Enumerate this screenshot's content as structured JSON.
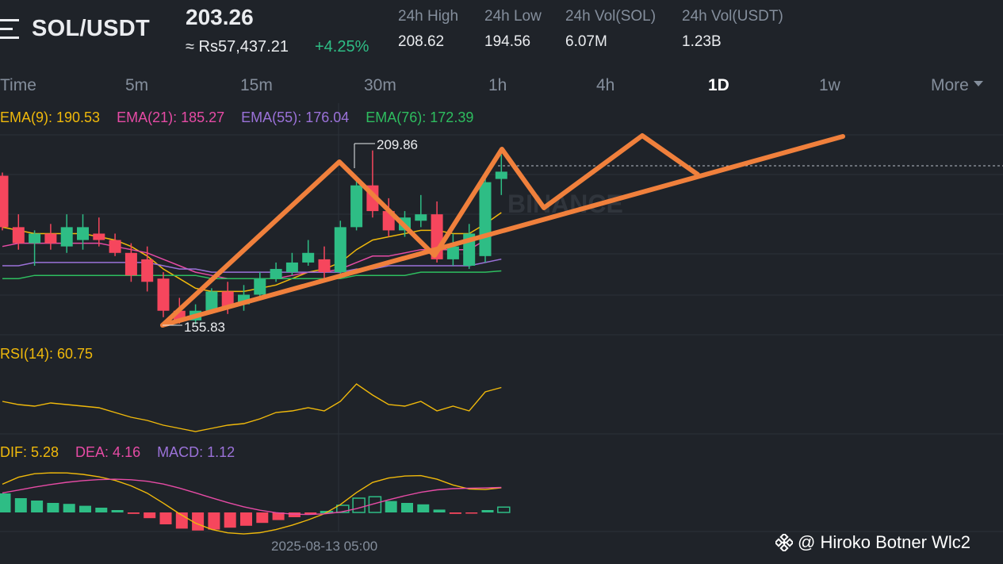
{
  "header": {
    "pair": "SOL/USDT",
    "price": "203.26",
    "fiat_price": "≈ Rs57,437.21",
    "change": "+4.25%",
    "stats": [
      {
        "label": "24h High",
        "value": "208.62"
      },
      {
        "label": "24h Low",
        "value": "194.56"
      },
      {
        "label": "24h Vol(SOL)",
        "value": "6.07M"
      },
      {
        "label": "24h Vol(USDT)",
        "value": "1.23B"
      }
    ]
  },
  "tabs": [
    {
      "label": "Time"
    },
    {
      "label": "5m"
    },
    {
      "label": "15m"
    },
    {
      "label": "30m"
    },
    {
      "label": "1h"
    },
    {
      "label": "4h"
    },
    {
      "label": "1D",
      "active": true
    },
    {
      "label": "1w"
    },
    {
      "label": "More"
    }
  ],
  "ema": [
    {
      "label": "EMA(9): 190.53",
      "color": "#f0b90b"
    },
    {
      "label": "EMA(21): 185.27",
      "color": "#e64ba5"
    },
    {
      "label": "EMA(55): 176.04",
      "color": "#9b72d9"
    },
    {
      "label": "EMA(76): 172.39",
      "color": "#2ebd5f"
    }
  ],
  "rsi": {
    "label": "RSI(14): 60.75",
    "color": "#f0b90b"
  },
  "macd": [
    {
      "label": "DIF: 5.28",
      "color": "#f0b90b"
    },
    {
      "label": "DEA: 4.16",
      "color": "#e64ba5"
    },
    {
      "label": "MACD: 1.12",
      "color": "#9b72d9"
    }
  ],
  "chart_marks": {
    "high_label": "209.86",
    "low_label": "155.83",
    "watermark_center": "BINANCE",
    "time_axis_label": "2025-08-13 05:00"
  },
  "colors": {
    "up": "#2ebd85",
    "down": "#f6465d",
    "drawing": "#f0803c",
    "background": "#1f2329"
  },
  "chart_data": {
    "type": "candlestick",
    "title": "SOL/USDT",
    "interval": "1D",
    "ylim": [
      155,
      212
    ],
    "candles": [
      {
        "o": 202,
        "h": 203,
        "c": 186,
        "l": 185
      },
      {
        "o": 186,
        "h": 190,
        "c": 181,
        "l": 179
      },
      {
        "o": 181,
        "h": 185,
        "c": 184,
        "l": 174
      },
      {
        "o": 184,
        "h": 187,
        "c": 181,
        "l": 179
      },
      {
        "o": 180,
        "h": 190,
        "c": 186,
        "l": 178
      },
      {
        "o": 182,
        "h": 190,
        "c": 186,
        "l": 179
      },
      {
        "o": 184,
        "h": 189,
        "c": 182,
        "l": 180
      },
      {
        "o": 182,
        "h": 184,
        "c": 178,
        "l": 177
      },
      {
        "o": 178,
        "h": 181,
        "c": 171,
        "l": 169
      },
      {
        "o": 176,
        "h": 180,
        "c": 169,
        "l": 166
      },
      {
        "o": 170,
        "h": 172,
        "c": 160,
        "l": 158
      },
      {
        "o": 160,
        "h": 164,
        "c": 157,
        "l": 156
      },
      {
        "o": 157,
        "h": 162,
        "c": 160,
        "l": 155.83
      },
      {
        "o": 160,
        "h": 167,
        "c": 166,
        "l": 159
      },
      {
        "o": 166,
        "h": 169,
        "c": 161,
        "l": 159
      },
      {
        "o": 162,
        "h": 168,
        "c": 165,
        "l": 160
      },
      {
        "o": 165,
        "h": 172,
        "c": 170,
        "l": 164
      },
      {
        "o": 170,
        "h": 175,
        "c": 173,
        "l": 169
      },
      {
        "o": 172,
        "h": 178,
        "c": 175,
        "l": 171
      },
      {
        "o": 175,
        "h": 182,
        "c": 178,
        "l": 174
      },
      {
        "o": 176,
        "h": 180,
        "c": 172,
        "l": 170
      },
      {
        "o": 172,
        "h": 188,
        "c": 186,
        "l": 171
      },
      {
        "o": 186,
        "h": 202,
        "c": 199,
        "l": 185
      },
      {
        "o": 199,
        "h": 209.86,
        "c": 191,
        "l": 189
      },
      {
        "o": 191,
        "h": 195,
        "c": 185,
        "l": 183
      },
      {
        "o": 185,
        "h": 191,
        "c": 189,
        "l": 183
      },
      {
        "o": 188,
        "h": 196,
        "c": 190,
        "l": 186
      },
      {
        "o": 190,
        "h": 194,
        "c": 176,
        "l": 175
      },
      {
        "o": 176,
        "h": 184,
        "c": 180,
        "l": 174
      },
      {
        "o": 174,
        "h": 187,
        "c": 184,
        "l": 173
      },
      {
        "o": 177,
        "h": 203,
        "c": 200,
        "l": 175
      },
      {
        "o": 201,
        "h": 208.62,
        "c": 203.26,
        "l": 196
      }
    ],
    "ema": {
      "EMA(9)": [
        186,
        185,
        184,
        184,
        184,
        184,
        183,
        182,
        180,
        177,
        173,
        170,
        167,
        166,
        166,
        166,
        167,
        168,
        170,
        172,
        173,
        175,
        179,
        182,
        183,
        184,
        185,
        185,
        184,
        184,
        187,
        190.53
      ],
      "EMA(21)": [
        180,
        181,
        181,
        181,
        181,
        181,
        181,
        180,
        179,
        178,
        176,
        174,
        172,
        171,
        170,
        170,
        170,
        170,
        171,
        172,
        172,
        173,
        175,
        177,
        177,
        178,
        179,
        179,
        179,
        179,
        182,
        185.27
      ],
      "EMA(55)": [
        174,
        174,
        175,
        175,
        175,
        175,
        175,
        175,
        175,
        175,
        174,
        173,
        173,
        172,
        172,
        172,
        172,
        172,
        172,
        172,
        172,
        172,
        173,
        173,
        174,
        174,
        174,
        174,
        174,
        174,
        175,
        176.04
      ],
      "EMA(76)": [
        170,
        170,
        171,
        171,
        171,
        171,
        171,
        171,
        171,
        171,
        171,
        171,
        171,
        170,
        170,
        170,
        170,
        170,
        170,
        170,
        170,
        170,
        171,
        171,
        171,
        171,
        172,
        172,
        172,
        172,
        172,
        172.39
      ]
    },
    "rsi": [
      52,
      50,
      49,
      51,
      50,
      49,
      48,
      45,
      42,
      40,
      37,
      35,
      33,
      35,
      37,
      38,
      41,
      45,
      46,
      48,
      46,
      52,
      63,
      56,
      50,
      49,
      52,
      46,
      49,
      46,
      58,
      60.75
    ],
    "macd_hist": [
      4,
      3,
      2.5,
      2,
      1.8,
      1.4,
      1,
      0.5,
      -0.3,
      -1.2,
      -2.5,
      -3.4,
      -3.8,
      -3.6,
      -3.2,
      -2.8,
      -2.2,
      -1.6,
      -1,
      -0.4,
      0.2,
      1.5,
      3,
      3.3,
      2.4,
      2,
      1.7,
      0.6,
      -0.3,
      -0.2,
      0.5,
      1.12
    ]
  }
}
